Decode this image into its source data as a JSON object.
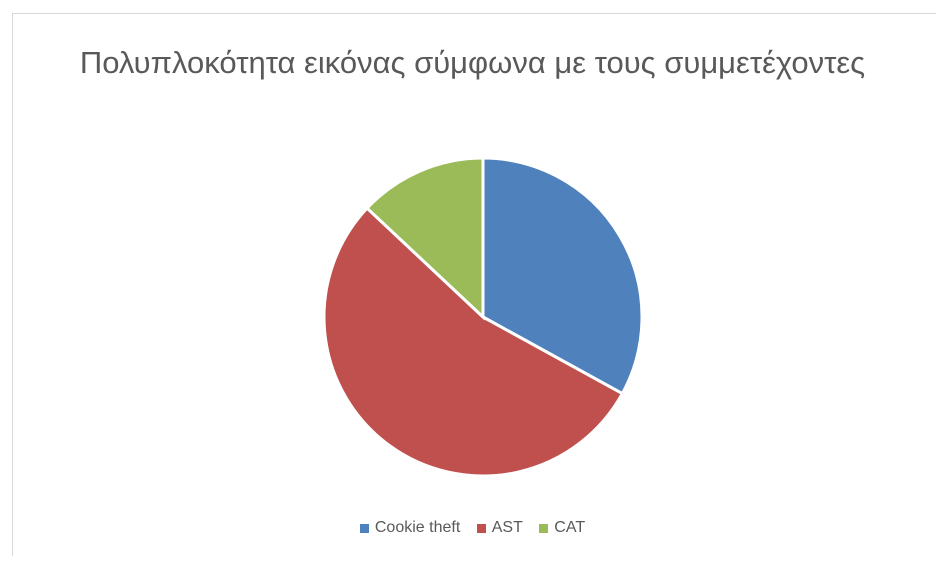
{
  "chart_data": {
    "type": "pie",
    "title": "Πολυπλοκότητα εικόνας σύμφωνα με τους συμμετέχοντες",
    "categories": [
      "Cookie theft",
      "AST",
      "CAT"
    ],
    "values": [
      33,
      54,
      13
    ],
    "colors": [
      "#4f81bd",
      "#c0504d",
      "#9bbb59"
    ],
    "legend_position": "bottom"
  }
}
